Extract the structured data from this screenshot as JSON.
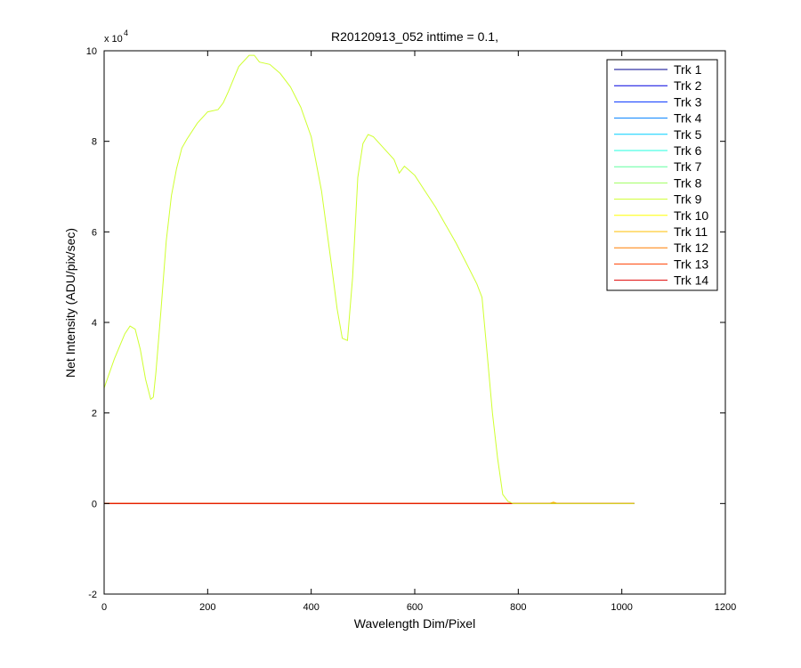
{
  "chart_data": {
    "type": "line",
    "title": "R20120913_052 inttime = 0.1,",
    "xlabel": "Wavelength Dim/Pixel",
    "ylabel": "Net Intensity (ADU/pix/sec)",
    "y_exponent_label": "x 10",
    "y_exponent_power": "4",
    "xlim": [
      0,
      1200
    ],
    "ylim": [
      -2,
      10
    ],
    "xticks": [
      0,
      200,
      400,
      600,
      800,
      1000,
      1200
    ],
    "yticks": [
      -2,
      0,
      2,
      4,
      6,
      8,
      10
    ],
    "legend_position": "top-right",
    "grid": false,
    "series": [
      {
        "name": "Trk 1",
        "color": "#00008F",
        "x": [
          0,
          1024
        ],
        "y": [
          0,
          0
        ]
      },
      {
        "name": "Trk 2",
        "color": "#0000DF",
        "x": [
          0,
          1024
        ],
        "y": [
          0,
          0
        ]
      },
      {
        "name": "Trk 3",
        "color": "#0030FF",
        "x": [
          0,
          1024
        ],
        "y": [
          0,
          0
        ]
      },
      {
        "name": "Trk 4",
        "color": "#0080FF",
        "x": [
          0,
          1024
        ],
        "y": [
          0,
          0
        ]
      },
      {
        "name": "Trk 5",
        "color": "#00CFFF",
        "x": [
          0,
          1024
        ],
        "y": [
          0,
          0
        ]
      },
      {
        "name": "Trk 6",
        "color": "#20FFDF",
        "x": [
          0,
          1024
        ],
        "y": [
          0,
          0
        ]
      },
      {
        "name": "Trk 7",
        "color": "#60FF9F",
        "x": [
          0,
          1024
        ],
        "y": [
          0,
          0
        ]
      },
      {
        "name": "Trk 8",
        "color": "#9FFF60",
        "x": [
          0,
          1024
        ],
        "y": [
          0,
          0
        ]
      },
      {
        "name": "Trk 9",
        "color": "#CFFF30",
        "x": [
          0,
          20,
          40,
          50,
          60,
          70,
          80,
          90,
          95,
          100,
          110,
          120,
          130,
          140,
          150,
          160,
          180,
          200,
          220,
          230,
          240,
          260,
          280,
          290,
          300,
          320,
          340,
          360,
          380,
          400,
          420,
          440,
          450,
          460,
          470,
          480,
          490,
          500,
          510,
          520,
          540,
          560,
          570,
          580,
          600,
          620,
          640,
          660,
          680,
          700,
          720,
          730,
          740,
          750,
          760,
          770,
          780,
          790,
          800,
          850,
          900,
          1024
        ],
        "y": [
          2.55,
          3.2,
          3.75,
          3.92,
          3.85,
          3.4,
          2.75,
          2.3,
          2.35,
          2.9,
          4.3,
          5.8,
          6.8,
          7.4,
          7.85,
          8.05,
          8.4,
          8.65,
          8.7,
          8.85,
          9.1,
          9.65,
          9.9,
          9.9,
          9.75,
          9.7,
          9.5,
          9.2,
          8.75,
          8.1,
          6.9,
          5.2,
          4.3,
          3.65,
          3.6,
          5.0,
          7.2,
          7.95,
          8.15,
          8.1,
          7.85,
          7.6,
          7.3,
          7.45,
          7.25,
          6.9,
          6.55,
          6.15,
          5.75,
          5.3,
          4.85,
          4.55,
          3.3,
          2.0,
          1.0,
          0.2,
          0.05,
          0.0,
          0.0,
          0.0,
          0.0,
          0.0
        ]
      },
      {
        "name": "Trk 10",
        "color": "#FFFF00",
        "x": [
          0,
          1024
        ],
        "y": [
          0,
          0
        ]
      },
      {
        "name": "Trk 11",
        "color": "#FFBF00",
        "x": [
          0,
          860,
          868,
          876,
          1024
        ],
        "y": [
          0,
          0,
          0.03,
          0,
          0
        ]
      },
      {
        "name": "Trk 12",
        "color": "#FF7F00",
        "x": [
          0,
          1024
        ],
        "y": [
          0,
          0
        ]
      },
      {
        "name": "Trk 13",
        "color": "#FF4000",
        "x": [
          0,
          1024
        ],
        "y": [
          0,
          0
        ]
      },
      {
        "name": "Trk 14",
        "color": "#DF0000",
        "x": [
          0,
          1024
        ],
        "y": [
          0,
          0
        ]
      }
    ]
  }
}
